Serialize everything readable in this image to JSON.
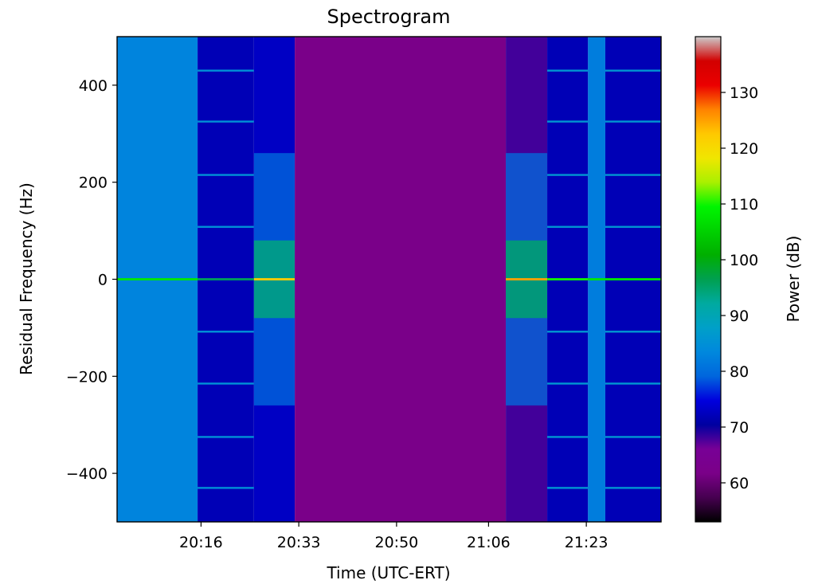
{
  "chart_data": {
    "type": "heatmap",
    "title": "Spectrogram",
    "xlabel": "Time (UTC-ERT)",
    "ylabel": "Residual Frequency (Hz)",
    "x_ticks": [
      {
        "label": "20:16",
        "minute": 1216
      },
      {
        "label": "20:33",
        "minute": 1233
      },
      {
        "label": "20:50",
        "minute": 1250
      },
      {
        "label": "21:06",
        "minute": 1266
      },
      {
        "label": "21:23",
        "minute": 1283
      }
    ],
    "xlim_minutes": [
      1201.4,
      1296
    ],
    "ylim": [
      -500,
      500
    ],
    "y_ticks": [
      {
        "value": 400,
        "label": "400"
      },
      {
        "value": 200,
        "label": "200"
      },
      {
        "value": 0,
        "label": "0"
      },
      {
        "value": -200,
        "label": "−200"
      },
      {
        "value": -400,
        "label": "−400"
      }
    ],
    "colorbar": {
      "label": "Power (dB)",
      "range": [
        53,
        140
      ],
      "ticks": [
        {
          "value": 60,
          "label": "60"
        },
        {
          "value": 70,
          "label": "70"
        },
        {
          "value": 80,
          "label": "80"
        },
        {
          "value": 90,
          "label": "90"
        },
        {
          "value": 100,
          "label": "100"
        },
        {
          "value": 110,
          "label": "110"
        },
        {
          "value": 120,
          "label": "120"
        },
        {
          "value": 130,
          "label": "130"
        }
      ],
      "colormap": "nipy_spectral"
    },
    "segments": [
      {
        "start": 1201.4,
        "end": 1215.4,
        "background_db": 83,
        "carrier_db": 108,
        "center_db": 0,
        "side_db": 0,
        "tones_db": 0
      },
      {
        "start": 1215.4,
        "end": 1225.2,
        "background_db": 72,
        "carrier_db": 96,
        "center_db": 0,
        "side_db": 0,
        "tones_db": 85
      },
      {
        "start": 1225.2,
        "end": 1232.3,
        "background_db": 73,
        "carrier_db": 122,
        "center_db": 94,
        "side_db": 80,
        "tones_db": 0
      },
      {
        "start": 1232.3,
        "end": 1269.0,
        "background_db": 62,
        "carrier_db": 0,
        "center_db": 0,
        "side_db": 0,
        "tones_db": 0
      },
      {
        "start": 1269.0,
        "end": 1276.2,
        "background_db": 68,
        "carrier_db": 125,
        "center_db": 95,
        "side_db": 80,
        "tones_db": 0
      },
      {
        "start": 1276.2,
        "end": 1283.3,
        "background_db": 72,
        "carrier_db": 110,
        "center_db": 0,
        "side_db": 0,
        "tones_db": 86
      },
      {
        "start": 1283.3,
        "end": 1286.3,
        "background_db": 82,
        "carrier_db": 108,
        "center_db": 0,
        "side_db": 0,
        "tones_db": 0
      },
      {
        "start": 1286.3,
        "end": 1296.0,
        "background_db": 72,
        "carrier_db": 108,
        "center_db": 0,
        "side_db": 0,
        "tones_db": 86
      }
    ],
    "tone_frequencies_hz": [
      430,
      325,
      215,
      108,
      -108,
      -215,
      -325,
      -430
    ],
    "grid": false
  }
}
